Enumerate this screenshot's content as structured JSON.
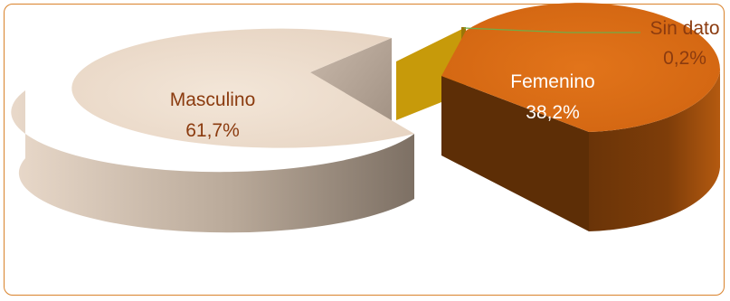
{
  "chart_data": {
    "type": "pie",
    "variant": "3d-exploded",
    "title": "",
    "categories": [
      "Masculino",
      "Femenino",
      "Sin dato"
    ],
    "values": [
      61.7,
      38.2,
      0.2
    ],
    "value_labels": [
      "61,7%",
      "38,2%",
      "0,2%"
    ],
    "colors": {
      "Masculino": "#efdfd0",
      "Femenino": "#d9690f",
      "Sin dato": "#c79a0a"
    },
    "legend": "none",
    "data_labels": "on-slice"
  },
  "colors": {
    "frame_border": "#d9822b",
    "label_text": "#8b3b0f",
    "leader_line": "#70ad47"
  }
}
